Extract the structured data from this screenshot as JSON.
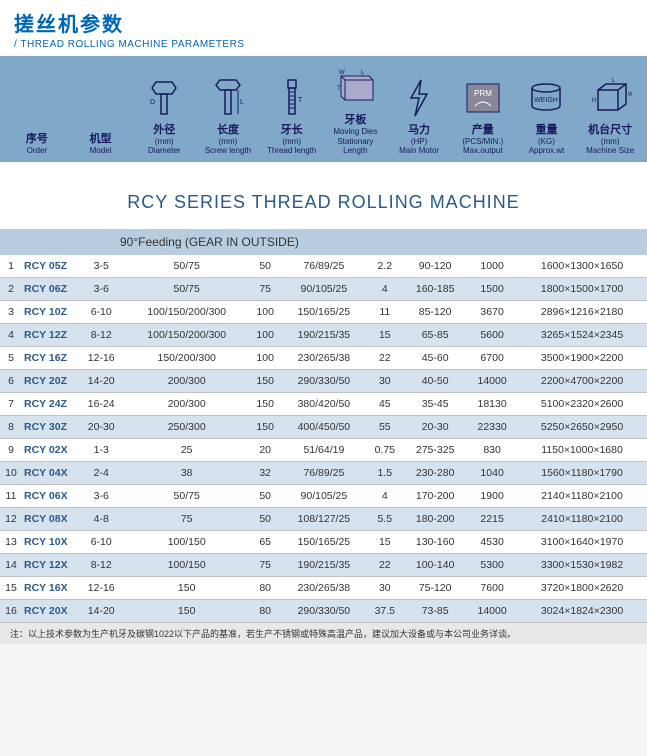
{
  "header": {
    "title_cn": "搓丝机参数",
    "title_en": "/ THREAD ROLLING MACHINE PARAMETERS"
  },
  "param_columns": [
    {
      "cn": "序号",
      "unit": "",
      "en": "Order",
      "icon": ""
    },
    {
      "cn": "机型",
      "unit": "",
      "en": "Model",
      "icon": ""
    },
    {
      "cn": "外径",
      "unit": "(mm)",
      "en": "Diameter",
      "icon": "bolt-head"
    },
    {
      "cn": "长度",
      "unit": "(mm)",
      "en": "Screw length",
      "icon": "screw-len"
    },
    {
      "cn": "牙长",
      "unit": "(mm)",
      "en": "Thread length",
      "icon": "thread-len"
    },
    {
      "cn": "牙板",
      "unit": "Moving Dies",
      "en": "Stationary Length",
      "icon": "dies"
    },
    {
      "cn": "马力",
      "unit": "(HP)",
      "en": "Main Motor",
      "icon": "bolt-zig"
    },
    {
      "cn": "产量",
      "unit": "(PCS/MIN.)",
      "en": "Max.output",
      "icon": "prm"
    },
    {
      "cn": "重量",
      "unit": "(KG)",
      "en": "Approx.wt",
      "icon": "weigh"
    },
    {
      "cn": "机台尺寸",
      "unit": "(mm)",
      "en": "Machine Size",
      "icon": "box-lwh"
    }
  ],
  "series_title": "RCY SERIES THREAD ROLLING MACHINE",
  "feed_header": "90°Feeding (GEAR IN OUTSIDE)",
  "rows": [
    [
      "1",
      "RCY 05Z",
      "3-5",
      "50/75",
      "50",
      "76/89/25",
      "2.2",
      "90-120",
      "1000",
      "1600×1300×1650"
    ],
    [
      "2",
      "RCY 06Z",
      "3-6",
      "50/75",
      "75",
      "90/105/25",
      "4",
      "160-185",
      "1500",
      "1800×1500×1700"
    ],
    [
      "3",
      "RCY 10Z",
      "6-10",
      "100/150/200/300",
      "100",
      "150/165/25",
      "11",
      "85-120",
      "3670",
      "2896×1216×2180"
    ],
    [
      "4",
      "RCY 12Z",
      "8-12",
      "100/150/200/300",
      "100",
      "190/215/35",
      "15",
      "65-85",
      "5600",
      "3265×1524×2345"
    ],
    [
      "5",
      "RCY 16Z",
      "12-16",
      "150/200/300",
      "100",
      "230/265/38",
      "22",
      "45-60",
      "6700",
      "3500×1900×2200"
    ],
    [
      "6",
      "RCY 20Z",
      "14-20",
      "200/300",
      "150",
      "290/330/50",
      "30",
      "40-50",
      "14000",
      "2200×4700×2200"
    ],
    [
      "7",
      "RCY 24Z",
      "16-24",
      "200/300",
      "150",
      "380/420/50",
      "45",
      "35-45",
      "18130",
      "5100×2320×2600"
    ],
    [
      "8",
      "RCY 30Z",
      "20-30",
      "250/300",
      "150",
      "400/450/50",
      "55",
      "20-30",
      "22330",
      "5250×2650×2950"
    ],
    [
      "9",
      "RCY 02X",
      "1-3",
      "25",
      "20",
      "51/64/19",
      "0.75",
      "275-325",
      "830",
      "1150×1000×1680"
    ],
    [
      "10",
      "RCY 04X",
      "2-4",
      "38",
      "32",
      "76/89/25",
      "1.5",
      "230-280",
      "1040",
      "1560×1180×1790"
    ],
    [
      "11",
      "RCY 06X",
      "3-6",
      "50/75",
      "50",
      "90/105/25",
      "4",
      "170-200",
      "1900",
      "2140×1180×2100"
    ],
    [
      "12",
      "RCY 08X",
      "4-8",
      "75",
      "50",
      "108/127/25",
      "5.5",
      "180-200",
      "2215",
      "2410×1180×2100"
    ],
    [
      "13",
      "RCY 10X",
      "6-10",
      "100/150",
      "65",
      "150/165/25",
      "15",
      "130-160",
      "4530",
      "3100×1640×1970"
    ],
    [
      "14",
      "RCY 12X",
      "8-12",
      "100/150",
      "75",
      "190/215/35",
      "22",
      "100-140",
      "5300",
      "3300×1530×1982"
    ],
    [
      "15",
      "RCY 16X",
      "12-16",
      "150",
      "80",
      "230/265/38",
      "30",
      "75-120",
      "7600",
      "3720×1800×2620"
    ],
    [
      "16",
      "RCY 20X",
      "14-20",
      "150",
      "80",
      "290/330/50",
      "37.5",
      "73-85",
      "14000",
      "3024×1824×2300"
    ]
  ],
  "note": "注：以上技术参数为生产机牙及碳钢1022以下产品的基准，若生产不锈钢或特殊高温产品，建议加大设备或与本公司业务详谈。",
  "colors": {
    "brand": "#0066b3",
    "panel": "#7fa8c9",
    "row_even": "#d6e3ef",
    "feed_hdr": "#b8cde0"
  }
}
